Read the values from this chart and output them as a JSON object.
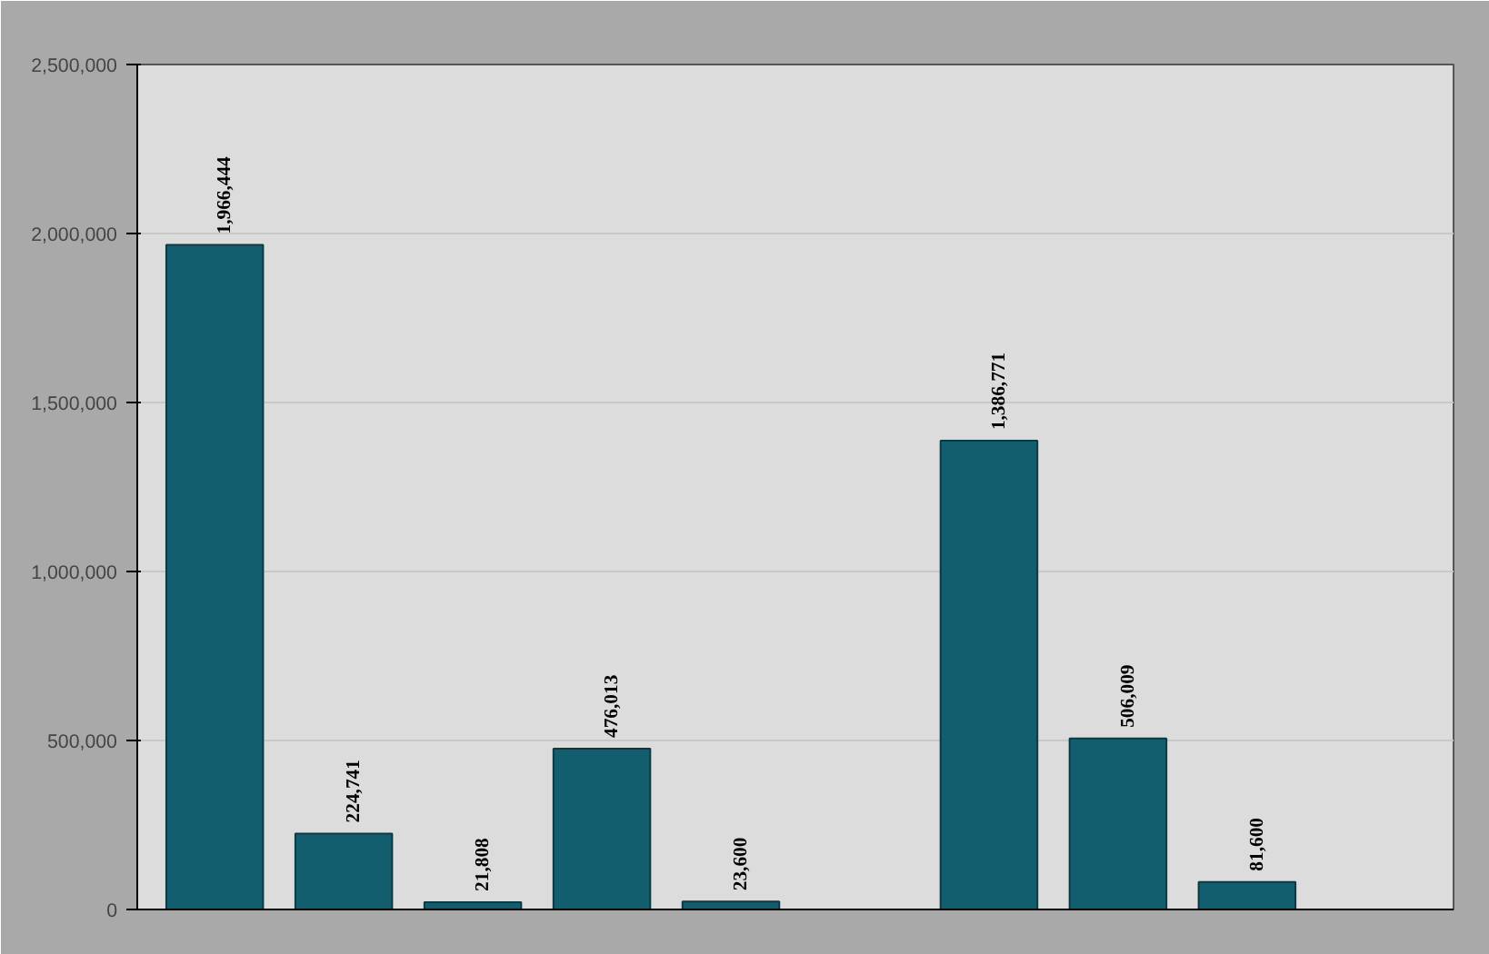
{
  "chart_data": {
    "type": "bar",
    "categories": [
      null,
      null,
      null,
      null,
      null,
      null,
      null,
      null,
      null,
      null
    ],
    "values": [
      1966444,
      224741,
      21808,
      476013,
      23600,
      null,
      1386771,
      506009,
      81600,
      null
    ],
    "value_labels": [
      "1,966,444",
      "224,741",
      "21,808",
      "476,013",
      "23,600",
      null,
      "1,386,771",
      "506,009",
      "81,600",
      null
    ],
    "color": "#135e6e",
    "ylim": [
      0,
      2500000
    ],
    "yticks": [
      {
        "value": 0,
        "label": "0"
      },
      {
        "value": 500000,
        "label": "500,000"
      },
      {
        "value": 1000000,
        "label": "1,000,000"
      },
      {
        "value": 1500000,
        "label": "1,500,000"
      },
      {
        "value": 2000000,
        "label": "2,000,000"
      },
      {
        "value": 2500000,
        "label": "2,500,000"
      }
    ],
    "grid": "y"
  }
}
